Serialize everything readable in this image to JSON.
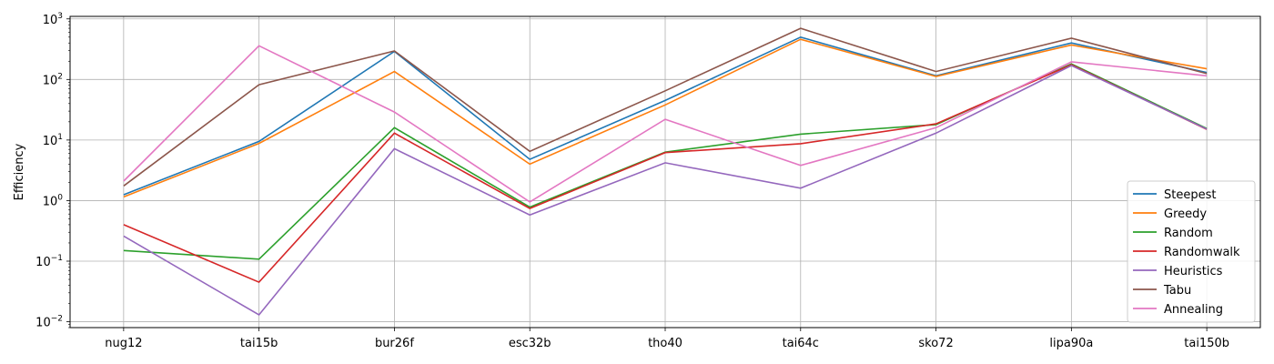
{
  "chart_data": {
    "type": "line",
    "title": "",
    "xlabel": "",
    "ylabel": "Efficiency",
    "yscale": "log",
    "ylim": [
      0.008,
      1100
    ],
    "y_ticks": [
      0.01,
      0.1,
      1,
      10,
      100,
      1000
    ],
    "y_tick_labels": [
      {
        "base": "10",
        "exp": "−2"
      },
      {
        "base": "10",
        "exp": "−1"
      },
      {
        "base": "10",
        "exp": "0"
      },
      {
        "base": "10",
        "exp": "1"
      },
      {
        "base": "10",
        "exp": "2"
      },
      {
        "base": "10",
        "exp": "3"
      }
    ],
    "grid": true,
    "legend_position": "lower-right",
    "categories": [
      "nug12",
      "tai15b",
      "bur26f",
      "esc32b",
      "tho40",
      "tai64c",
      "sko72",
      "lipa90a",
      "tai150b"
    ],
    "series": [
      {
        "name": "Steepest",
        "color": "#1f77b4",
        "values": [
          1.25,
          9.5,
          290,
          4.8,
          45,
          500,
          115,
          400,
          130
        ]
      },
      {
        "name": "Greedy",
        "color": "#ff7f0e",
        "values": [
          1.15,
          8.8,
          135,
          4.0,
          38,
          460,
          112,
          370,
          150
        ]
      },
      {
        "name": "Random",
        "color": "#2ca02c",
        "values": [
          0.15,
          0.108,
          16,
          0.78,
          6.3,
          12.5,
          18,
          180,
          15.5
        ]
      },
      {
        "name": "Randomwalk",
        "color": "#d62728",
        "values": [
          0.4,
          0.045,
          13,
          0.74,
          6.2,
          8.7,
          18.5,
          175,
          15.0
        ]
      },
      {
        "name": "Heuristics",
        "color": "#9467bd",
        "values": [
          0.26,
          0.013,
          7.2,
          0.58,
          4.2,
          1.6,
          13,
          170,
          15.2
        ]
      },
      {
        "name": "Tabu",
        "color": "#8c564b",
        "values": [
          1.75,
          82,
          295,
          6.5,
          65,
          700,
          135,
          480,
          125
        ]
      },
      {
        "name": "Annealing",
        "color": "#e377c2",
        "values": [
          2.1,
          360,
          29,
          0.95,
          22,
          3.8,
          16,
          195,
          115
        ]
      }
    ]
  }
}
